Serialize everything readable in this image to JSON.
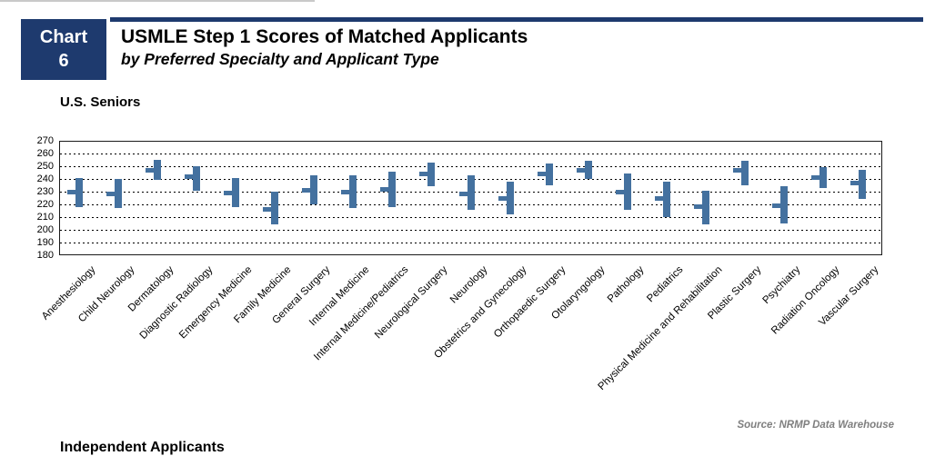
{
  "header": {
    "badge_line1": "Chart",
    "badge_line2": "6"
  },
  "chart_data": {
    "type": "bar",
    "variant": "floating-range-bars-with-mean-tick",
    "title": "USMLE Step 1 Scores of Matched Applicants",
    "subtitle": "by Preferred Specialty and Applicant Type",
    "group": "U.S. Seniors",
    "xlabel": "",
    "ylabel": "",
    "ylim": [
      180,
      270
    ],
    "yticks": [
      270,
      260,
      250,
      240,
      230,
      220,
      210,
      200,
      190,
      180
    ],
    "grid": "horizontal-dotted",
    "legend": "none",
    "categories": [
      "Anesthesiology",
      "Child Neurology",
      "Dermatology",
      "Diagnostic Radiology",
      "Emergency Medicine",
      "Family Medicine",
      "General Surgery",
      "Internal Medicine",
      "Internal Medicine/Pediatrics",
      "Neurological Surgery",
      "Neurology",
      "Obstetrics and Gynecology",
      "Orthopaedic Surgery",
      "Otolaryngology",
      "Pathology",
      "Pediatrics",
      "Physical Medicine and Rehabilitation",
      "Plastic Surgery",
      "Psychiatry",
      "Radiation Oncology",
      "Vascular Surgery"
    ],
    "series": [
      {
        "name": "low",
        "values": [
          218,
          217,
          239,
          231,
          218,
          204,
          220,
          217,
          218,
          234,
          216,
          212,
          235,
          240,
          216,
          210,
          204,
          235,
          205,
          233,
          224
        ]
      },
      {
        "name": "mean",
        "values": [
          230,
          228,
          247,
          242,
          229,
          216,
          231,
          230,
          232,
          244,
          228,
          225,
          244,
          247,
          230,
          225,
          218,
          247,
          219,
          241,
          237
        ]
      },
      {
        "name": "high",
        "values": [
          241,
          240,
          255,
          250,
          241,
          230,
          243,
          243,
          246,
          253,
          243,
          238,
          252,
          254,
          244,
          238,
          231,
          254,
          234,
          249,
          247
        ]
      }
    ]
  },
  "sections": {
    "independent_label": "Independent Applicants"
  },
  "source_note": "Source: NRMP Data Warehouse",
  "colors": {
    "navy": "#1e3a6e",
    "bar_blue": "#44719f",
    "source_gray": "#7f7f7f"
  }
}
